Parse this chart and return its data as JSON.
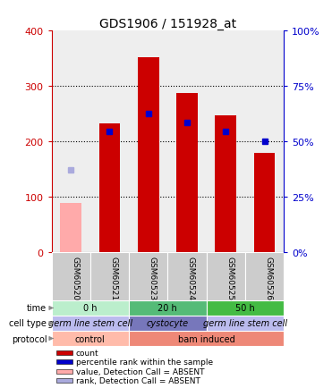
{
  "title": "GDS1906 / 151928_at",
  "samples": [
    "GSM60520",
    "GSM60521",
    "GSM60523",
    "GSM60524",
    "GSM60525",
    "GSM60526"
  ],
  "count_values": [
    null,
    232,
    352,
    287,
    247,
    178
  ],
  "count_absent": [
    88,
    null,
    null,
    null,
    null,
    null
  ],
  "rank_values": [
    null,
    218,
    250,
    234,
    218,
    200
  ],
  "rank_absent": [
    148,
    null,
    null,
    null,
    null,
    null
  ],
  "ylim_left": [
    0,
    400
  ],
  "ylim_right": [
    0,
    100
  ],
  "left_ticks": [
    0,
    100,
    200,
    300,
    400
  ],
  "right_ticks": [
    0,
    25,
    50,
    75,
    100
  ],
  "right_tick_labels": [
    "0%",
    "25%",
    "50%",
    "75%",
    "100%"
  ],
  "count_color": "#cc0000",
  "count_absent_color": "#ffaaaa",
  "rank_color": "#0000cc",
  "rank_absent_color": "#aaaadd",
  "bg_color": "#ffffff",
  "plot_bg": "#eeeeee",
  "time_groups": [
    {
      "label": "0 h",
      "cols": [
        0,
        1
      ],
      "color": "#bbeecc"
    },
    {
      "label": "20 h",
      "cols": [
        2,
        3
      ],
      "color": "#55bb77"
    },
    {
      "label": "50 h",
      "cols": [
        4,
        5
      ],
      "color": "#44bb44"
    }
  ],
  "celltype_groups": [
    {
      "label": "germ line stem cell",
      "cols": [
        0,
        1
      ],
      "color": "#bbbbee"
    },
    {
      "label": "cystocyte",
      "cols": [
        2,
        3
      ],
      "color": "#7777bb"
    },
    {
      "label": "germ line stem cell",
      "cols": [
        4,
        5
      ],
      "color": "#bbbbee"
    }
  ],
  "protocol_groups": [
    {
      "label": "control",
      "cols": [
        0,
        1
      ],
      "color": "#ffbbaa"
    },
    {
      "label": "bam induced",
      "cols": [
        2,
        5
      ],
      "color": "#ee8877"
    }
  ],
  "legend_items": [
    {
      "color": "#cc0000",
      "label": "count"
    },
    {
      "color": "#0000cc",
      "label": "percentile rank within the sample"
    },
    {
      "color": "#ffaaaa",
      "label": "value, Detection Call = ABSENT"
    },
    {
      "color": "#aaaadd",
      "label": "rank, Detection Call = ABSENT"
    }
  ],
  "row_labels": [
    "time",
    "cell type",
    "protocol"
  ],
  "left_axis_color": "#cc0000",
  "right_axis_color": "#0000cc"
}
